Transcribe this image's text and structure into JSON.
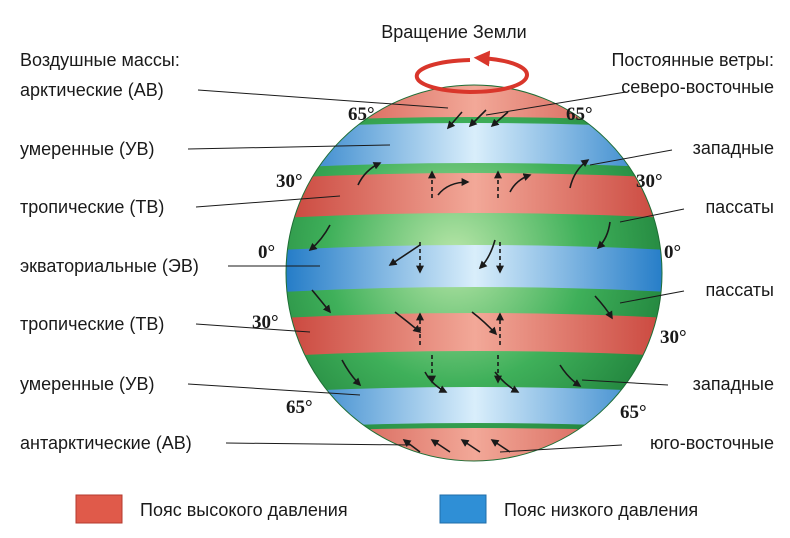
{
  "title": "Вращение Земли",
  "left_heading": "Воздушные массы:",
  "right_heading": "Постоянные ветры:",
  "air_masses": [
    "арктические (АВ)",
    "умеренные (УВ)",
    "тропические (ТВ)",
    "экваториальные (ЭВ)",
    "тропические (ТВ)",
    "умеренные (УВ)",
    "антарктические (АВ)"
  ],
  "winds": [
    "северо-восточные",
    "западные",
    "пассаты",
    "пассаты",
    "западные",
    "юго-восточные"
  ],
  "latitudes": {
    "n65_left": "65°",
    "n65_right": "65°",
    "n30_left": "30°",
    "n30_right": "30°",
    "eq_left": "0°",
    "eq_right": "0°",
    "s30_left": "30°",
    "s30_right": "30°",
    "s65_left": "65°",
    "s65_right": "65°"
  },
  "legend": {
    "high": "Пояс высокого давления",
    "low": "Пояс низкого давления"
  },
  "colors": {
    "high_pressure": "#e05a4a",
    "low_pressure": "#2f8fd6",
    "globe_green": "#2fa84f",
    "rotation_arrow": "#d9362b"
  }
}
